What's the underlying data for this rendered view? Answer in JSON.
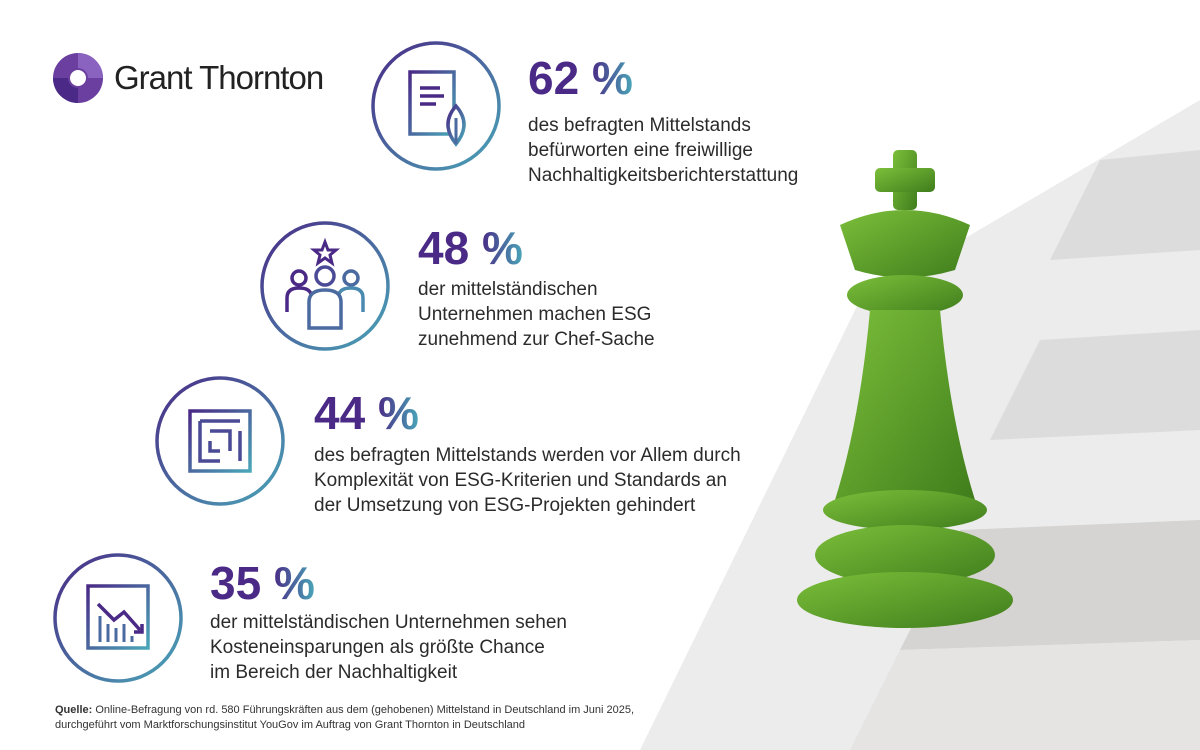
{
  "brand": {
    "name": "Grant Thornton",
    "logo_icon": "grant-thornton-swirl-logo",
    "color_purple": "#4a2a86",
    "color_teal": "#4aa6b8"
  },
  "stats": [
    {
      "value": "62 %",
      "icon": "document-leaf-icon",
      "lines": [
        "des befragten Mittelstands",
        "befürworten eine freiwillige",
        "Nachhaltigkeitsberichterstattung"
      ]
    },
    {
      "value": "48 %",
      "icon": "team-star-icon",
      "lines": [
        "der mittelständischen",
        "Unternehmen machen ESG",
        "zunehmend zur Chef-Sache"
      ]
    },
    {
      "value": "44 %",
      "icon": "maze-icon",
      "lines": [
        "des befragten Mittelstands werden vor Allem durch",
        "Komplexität von ESG-Kriterien und Standards an",
        "der Umsetzung von ESG-Projekten gehindert"
      ]
    },
    {
      "value": "35 %",
      "icon": "declining-chart-icon",
      "lines": [
        "der mittelständischen Unternehmen sehen",
        "Kosteneinsparungen als größte Chance",
        "im Bereich der Nachhaltigkeit"
      ]
    }
  ],
  "source": {
    "label": "Quelle:",
    "line1": " Online-Befragung von rd. 580 Führungskräften aus dem (gehobenen) Mittelstand in Deutschland im Juni 2025,",
    "line2": "durchgeführt vom Marktforschungsinstitut YouGov im Auftrag von Grant Thornton in Deutschland"
  },
  "image": {
    "subject": "grass-chess-king-icon"
  }
}
